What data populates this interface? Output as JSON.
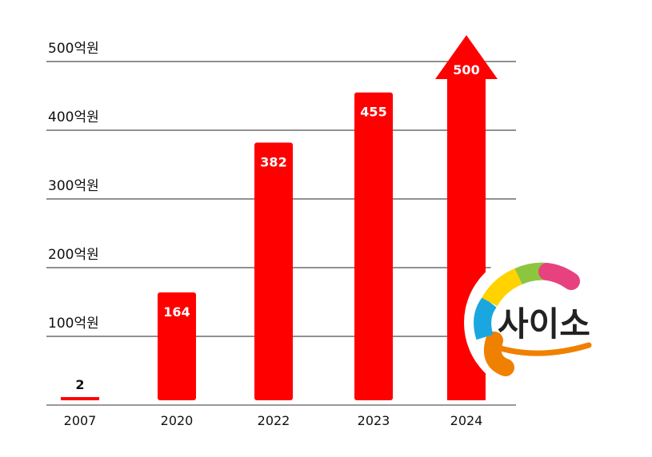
{
  "chart_data": {
    "type": "bar",
    "categories": [
      "2007",
      "2020",
      "2022",
      "2023",
      "2024"
    ],
    "values": [
      2,
      164,
      382,
      455,
      500
    ],
    "data_labels": [
      "2",
      "164",
      "382",
      "455",
      "500"
    ],
    "y_ticks": [
      {
        "value": 100,
        "label": "100억원"
      },
      {
        "value": 200,
        "label": "200억원"
      },
      {
        "value": 300,
        "label": "300억원"
      },
      {
        "value": 400,
        "label": "400억원"
      },
      {
        "value": 500,
        "label": "500억원"
      }
    ],
    "ylim": [
      0,
      500
    ],
    "grid": true,
    "bar_color": "#ff0000",
    "last_bar_style": "arrow-up"
  },
  "logo": {
    "text": "사이소",
    "colors": [
      "#f08000",
      "#1aa7e0",
      "#ffd200",
      "#8cc63f",
      "#e8417f"
    ]
  }
}
